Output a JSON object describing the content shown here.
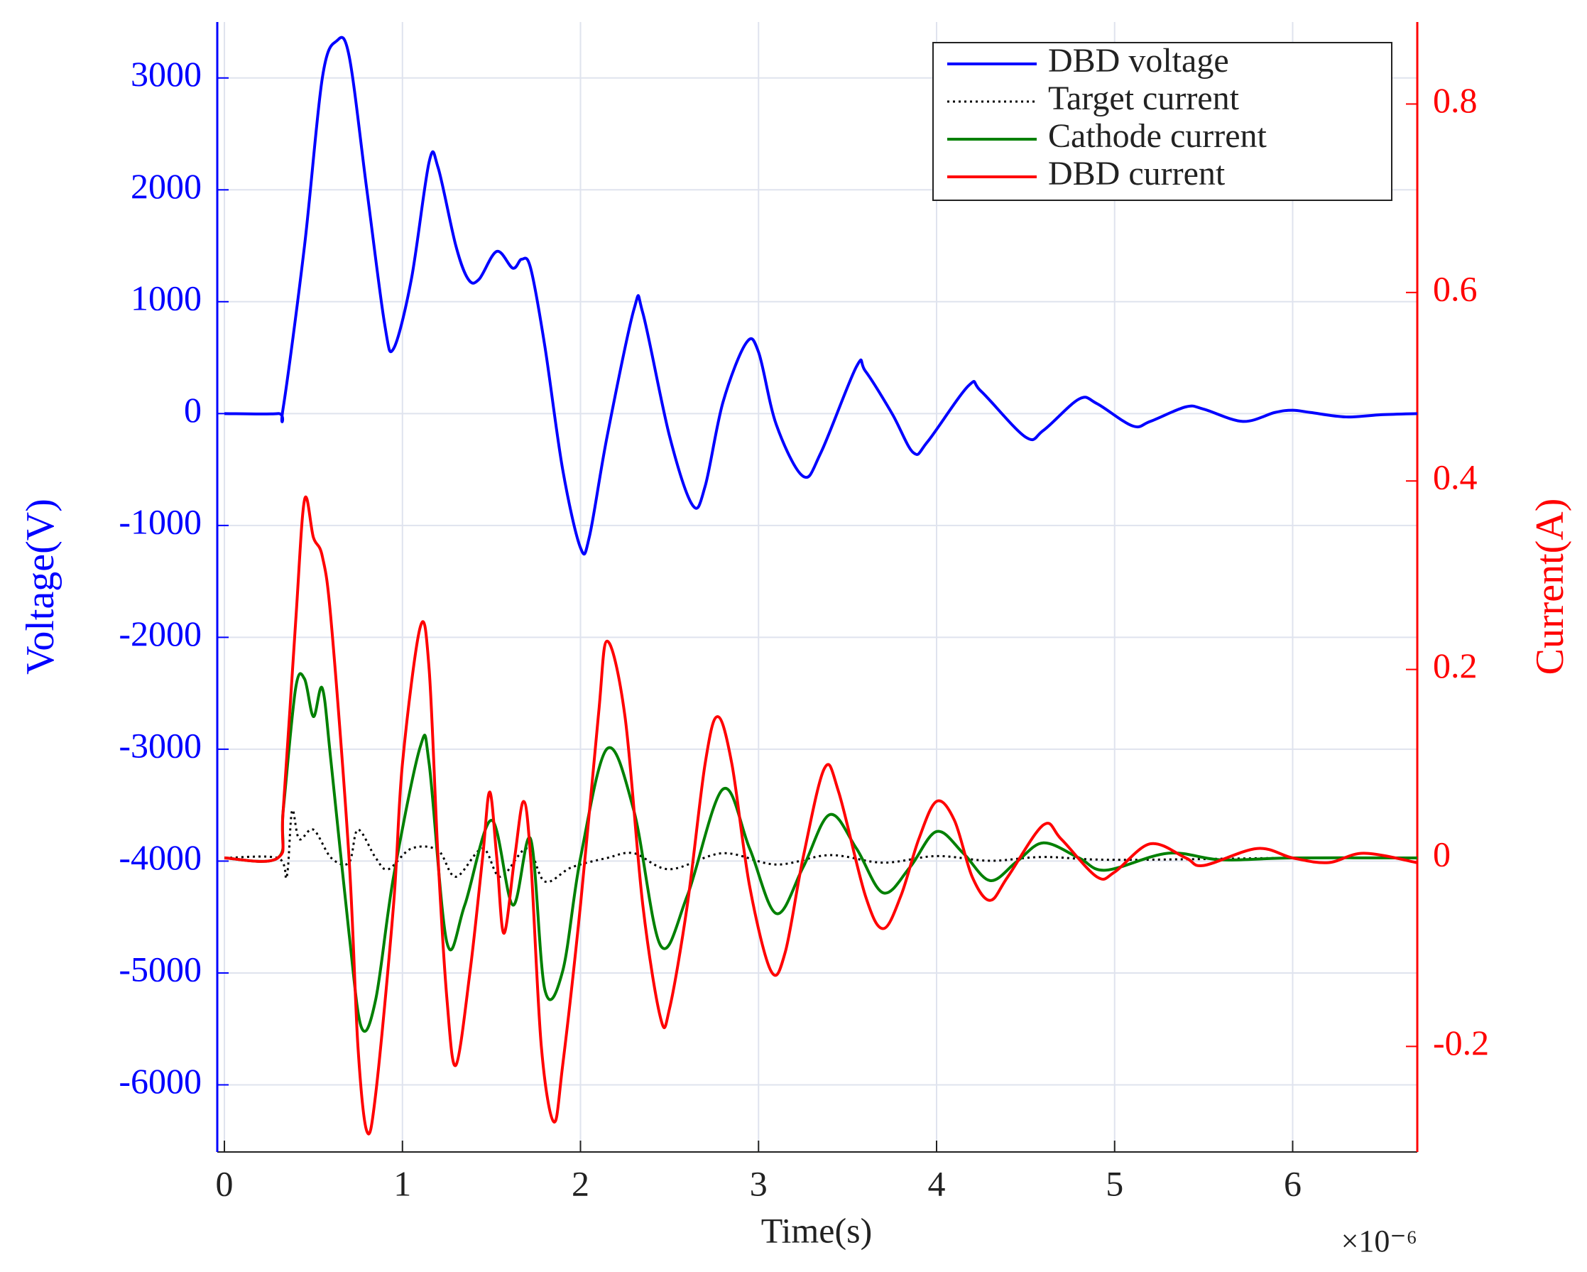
{
  "chart_data": {
    "type": "line",
    "xlabel": "Time(s)",
    "ylabel": "Voltage(V)",
    "y2label": "Current(A)",
    "x_multiplier": "×10⁻⁶",
    "xlim": [
      -4e-08,
      6.7e-06
    ],
    "xticks": [
      0,
      {
        "value": 1e-06,
        "label": "1"
      },
      {
        "value": 2e-06,
        "label": "2"
      },
      {
        "value": 3e-06,
        "label": "3"
      },
      {
        "value": 4e-06,
        "label": "4"
      },
      {
        "value": 5e-06,
        "label": "5"
      },
      {
        "value": 6e-06,
        "label": "6"
      }
    ],
    "ylim": [
      -6600,
      3500
    ],
    "yticks": [
      -6000,
      -5000,
      -4000,
      -3000,
      -2000,
      -1000,
      0,
      1000,
      2000,
      3000
    ],
    "y2lim": [
      -0.312,
      0.887
    ],
    "y2ticks": [
      -0.2,
      0,
      0.2,
      0.4,
      0.6,
      0.8
    ],
    "grid": true,
    "legend": "upper right",
    "series": [
      {
        "name": "DBD voltage",
        "color": "#0000ff",
        "axis": "y",
        "x": [
          0,
          3e-07,
          3.3e-07,
          4.5e-07,
          5.5e-07,
          6.3e-07,
          7e-07,
          8e-07,
          9e-07,
          9.5e-07,
          1.05e-06,
          1.15e-06,
          1.2e-06,
          1.3e-06,
          1.37e-06,
          1.43e-06,
          1.53e-06,
          1.62e-06,
          1.67e-06,
          1.72e-06,
          1.8e-06,
          1.9e-06,
          2e-06,
          2.05e-06,
          2.15e-06,
          2.3e-06,
          2.35e-06,
          2.5e-06,
          2.63e-06,
          2.7e-06,
          2.8e-06,
          2.93e-06,
          3e-06,
          3.1e-06,
          3.25e-06,
          3.35e-06,
          3.55e-06,
          3.6e-06,
          3.75e-06,
          3.87e-06,
          3.95e-06,
          4.18e-06,
          4.25e-06,
          4.5e-06,
          4.6e-06,
          4.8e-06,
          4.9e-06,
          5.1e-06,
          5.2e-06,
          5.4e-06,
          5.5e-06,
          5.72e-06,
          5.9e-06,
          6e-06,
          6.1e-06,
          6.3e-06,
          6.5e-06,
          6.7e-06
        ],
        "values": [
          0,
          0,
          50,
          1500,
          3000,
          3330,
          3200,
          2000,
          800,
          580,
          1200,
          2250,
          2200,
          1500,
          1200,
          1200,
          1450,
          1300,
          1380,
          1300,
          600,
          -500,
          -1200,
          -1100,
          -200,
          930,
          900,
          -200,
          -820,
          -650,
          100,
          630,
          550,
          -100,
          -560,
          -350,
          420,
          380,
          0,
          -350,
          -250,
          250,
          200,
          -210,
          -150,
          130,
          90,
          -110,
          -70,
          60,
          40,
          -70,
          10,
          30,
          10,
          -30,
          -10,
          0
        ]
      },
      {
        "name": "Target current",
        "color": "#000000",
        "axis": "y2",
        "dash": true,
        "x": [
          0,
          3e-07,
          3.5e-07,
          3.8e-07,
          4.2e-07,
          5e-07,
          6e-07,
          7e-07,
          7.5e-07,
          8.5e-07,
          9.2e-07,
          1.05e-06,
          1.2e-06,
          1.3e-06,
          1.45e-06,
          1.55e-06,
          1.7e-06,
          1.8e-06,
          1.95e-06,
          2.15e-06,
          2.3e-06,
          2.5e-06,
          2.8e-06,
          3.1e-06,
          3.4e-06,
          3.7e-06,
          4e-06,
          4.3e-06,
          4.6e-06,
          5e-06,
          6e-06,
          6.7e-06
        ],
        "values": [
          0,
          0,
          -0.02,
          0.05,
          0.02,
          0.03,
          0,
          -0.005,
          0.03,
          0,
          -0.012,
          0.01,
          0.008,
          -0.02,
          0.01,
          -0.02,
          0.01,
          -0.025,
          -0.01,
          0,
          0.005,
          -0.012,
          0.005,
          -0.007,
          0.003,
          -0.005,
          0.002,
          -0.003,
          0.001,
          -0.002,
          0,
          0
        ]
      },
      {
        "name": "Cathode current",
        "color": "#008000",
        "axis": "y2",
        "x": [
          0,
          3e-07,
          3.3e-07,
          4e-07,
          4.5e-07,
          5e-07,
          5.5e-07,
          6e-07,
          7e-07,
          7.7e-07,
          8.5e-07,
          9.5e-07,
          1.1e-06,
          1.15e-06,
          1.25e-06,
          1.35e-06,
          1.5e-06,
          1.62e-06,
          1.72e-06,
          1.8e-06,
          1.9e-06,
          2e-06,
          2.15e-06,
          2.3e-06,
          2.45e-06,
          2.6e-06,
          2.8e-06,
          2.95e-06,
          3.1e-06,
          3.25e-06,
          3.4e-06,
          3.55e-06,
          3.7e-06,
          3.85e-06,
          4e-06,
          4.15e-06,
          4.3e-06,
          4.45e-06,
          4.6e-06,
          4.8e-06,
          4.95e-06,
          5.3e-06,
          5.6e-06,
          6e-06,
          6.7e-06
        ],
        "values": [
          0,
          0,
          0.05,
          0.18,
          0.19,
          0.15,
          0.18,
          0.1,
          -0.08,
          -0.18,
          -0.15,
          -0.02,
          0.118,
          0.1,
          -0.09,
          -0.05,
          0.04,
          -0.05,
          0.02,
          -0.14,
          -0.12,
          0.0,
          0.116,
          0.05,
          -0.093,
          -0.04,
          0.073,
          0.01,
          -0.059,
          -0.01,
          0.046,
          0.01,
          -0.037,
          -0.01,
          0.028,
          0.005,
          -0.024,
          -0.004,
          0.016,
          0.0,
          -0.013,
          0.005,
          -0.002,
          0.0,
          0.0
        ]
      },
      {
        "name": "DBD current",
        "color": "#ff0000",
        "axis": "y2",
        "x": [
          0,
          3e-07,
          3.3e-07,
          4e-07,
          4.5e-07,
          5e-07,
          5.5e-07,
          6e-07,
          7e-07,
          7.5e-07,
          8e-07,
          8.5e-07,
          9.5e-07,
          1e-06,
          1.1e-06,
          1.15e-06,
          1.2e-06,
          1.25e-06,
          1.3e-06,
          1.38e-06,
          1.45e-06,
          1.49e-06,
          1.53e-06,
          1.57e-06,
          1.63e-06,
          1.68e-06,
          1.72e-06,
          1.78e-06,
          1.85e-06,
          1.9e-06,
          2e-06,
          2.1e-06,
          2.15e-06,
          2.25e-06,
          2.35e-06,
          2.45e-06,
          2.5e-06,
          2.6e-06,
          2.7e-06,
          2.77e-06,
          2.85e-06,
          2.95e-06,
          3.07e-06,
          3.15e-06,
          3.25e-06,
          3.37e-06,
          3.45e-06,
          3.6e-06,
          3.7e-06,
          3.8e-06,
          3.9e-06,
          4e-06,
          4.1e-06,
          4.2e-06,
          4.3e-06,
          4.4e-06,
          4.6e-06,
          4.7e-06,
          4.9e-06,
          5e-06,
          5.2e-06,
          5.4e-06,
          5.5e-06,
          5.8e-06,
          6e-06,
          6.2e-06,
          6.4e-06,
          6.7e-06
        ],
        "values": [
          0,
          0,
          0.05,
          0.25,
          0.38,
          0.34,
          0.32,
          0.25,
          0.0,
          -0.2,
          -0.29,
          -0.25,
          -0.05,
          0.1,
          0.245,
          0.2,
          0.0,
          -0.15,
          -0.22,
          -0.12,
          0.0,
          0.07,
          0.0,
          -0.08,
          0.0,
          0.06,
          0.0,
          -0.2,
          -0.28,
          -0.22,
          -0.05,
          0.15,
          0.23,
          0.15,
          -0.05,
          -0.17,
          -0.16,
          -0.05,
          0.1,
          0.15,
          0.1,
          -0.03,
          -0.12,
          -0.1,
          0.0,
          0.095,
          0.07,
          -0.04,
          -0.075,
          -0.04,
          0.02,
          0.06,
          0.04,
          -0.02,
          -0.045,
          -0.02,
          0.035,
          0.02,
          -0.02,
          -0.015,
          0.015,
          0.0,
          -0.008,
          0.01,
          0.0,
          -0.005,
          0.005,
          -0.005
        ]
      }
    ]
  }
}
